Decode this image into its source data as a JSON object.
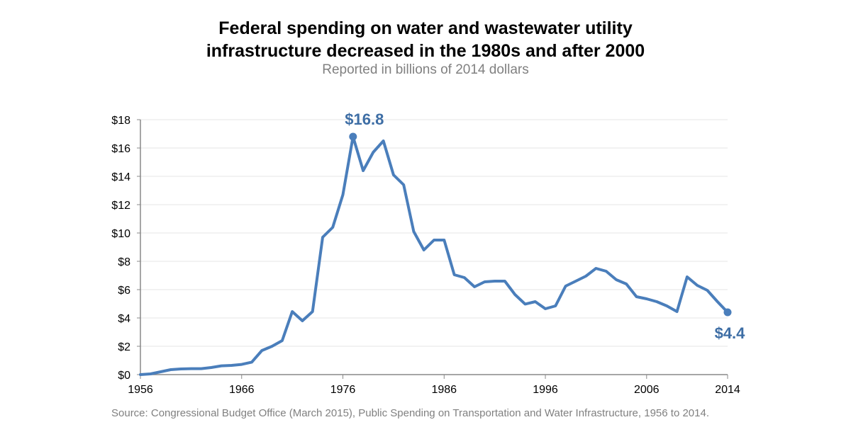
{
  "chart_data": {
    "type": "line",
    "title": "Federal spending on water and wastewater utility infrastructure decreased in the 1980s and after 2000",
    "title_lines": [
      "Federal spending on water and wastewater utility",
      "infrastructure decreased in the 1980s and after 2000"
    ],
    "subtitle": "Reported in billions of 2014 dollars",
    "xlabel": "",
    "ylabel": "",
    "xlim": [
      1956,
      2014
    ],
    "ylim": [
      0,
      18
    ],
    "x_ticks": [
      "1956",
      "1966",
      "1976",
      "1986",
      "1996",
      "2006",
      "2014"
    ],
    "y_ticks": [
      "$0",
      "$2",
      "$4",
      "$6",
      "$8",
      "$10",
      "$12",
      "$14",
      "$16",
      "$18"
    ],
    "grid": true,
    "line_color": "#4a7ebb",
    "x": [
      1956,
      1957,
      1958,
      1959,
      1960,
      1961,
      1962,
      1963,
      1964,
      1965,
      1966,
      1967,
      1968,
      1969,
      1970,
      1971,
      1972,
      1973,
      1974,
      1975,
      1976,
      1977,
      1978,
      1979,
      1980,
      1981,
      1982,
      1983,
      1984,
      1985,
      1986,
      1987,
      1988,
      1989,
      1990,
      1991,
      1992,
      1993,
      1994,
      1995,
      1996,
      1997,
      1998,
      1999,
      2000,
      2001,
      2002,
      2003,
      2004,
      2005,
      2006,
      2007,
      2008,
      2009,
      2010,
      2011,
      2012,
      2013,
      2014
    ],
    "values": [
      0,
      0.05,
      0.2,
      0.35,
      0.4,
      0.42,
      0.42,
      0.5,
      0.62,
      0.65,
      0.72,
      0.88,
      1.7,
      2.0,
      2.4,
      4.45,
      3.8,
      4.45,
      9.7,
      10.4,
      12.7,
      16.8,
      14.4,
      15.7,
      16.5,
      14.1,
      13.4,
      10.1,
      8.8,
      9.5,
      9.5,
      7.05,
      6.85,
      6.2,
      6.55,
      6.6,
      6.6,
      5.65,
      4.98,
      5.15,
      4.65,
      4.85,
      6.25,
      6.6,
      6.95,
      7.5,
      7.3,
      6.7,
      6.4,
      5.5,
      5.35,
      5.15,
      4.85,
      4.45,
      6.9,
      6.3,
      5.95,
      5.15,
      4.4
    ],
    "annotations": [
      {
        "x": 1977,
        "y": 16.8,
        "label": "$16.8"
      },
      {
        "x": 2014,
        "y": 4.4,
        "label": "$4.4"
      }
    ],
    "source": "Source: Congressional Budget Office (March 2015), Public Spending on Transportation and Water Infrastructure, 1956 to 2014."
  }
}
